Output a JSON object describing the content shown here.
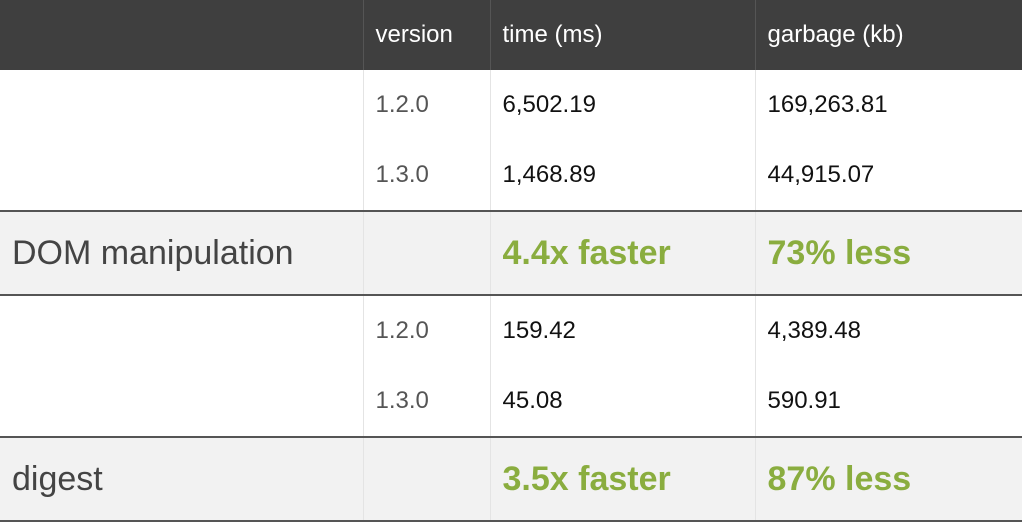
{
  "header": {
    "col0": "",
    "version": "version",
    "time": "time (ms)",
    "garbage": "garbage (kb)"
  },
  "groups": [
    {
      "rows": [
        {
          "version": "1.2.0",
          "time": "6,502.19",
          "garbage": "169,263.81"
        },
        {
          "version": "1.3.0",
          "time": "1,468.89",
          "garbage": "44,915.07"
        }
      ],
      "summary": {
        "label": "DOM manipulation",
        "time": "4.4x faster",
        "garbage": "73% less"
      }
    },
    {
      "rows": [
        {
          "version": "1.2.0",
          "time": "159.42",
          "garbage": "4,389.48"
        },
        {
          "version": "1.3.0",
          "time": "45.08",
          "garbage": "590.91"
        }
      ],
      "summary": {
        "label": "digest",
        "time": "3.5x faster",
        "garbage": "87% less"
      }
    }
  ],
  "colors": {
    "header_bg": "#3f3f3f",
    "highlight": "#8aad3f",
    "summary_bg": "#f2f2f2"
  }
}
